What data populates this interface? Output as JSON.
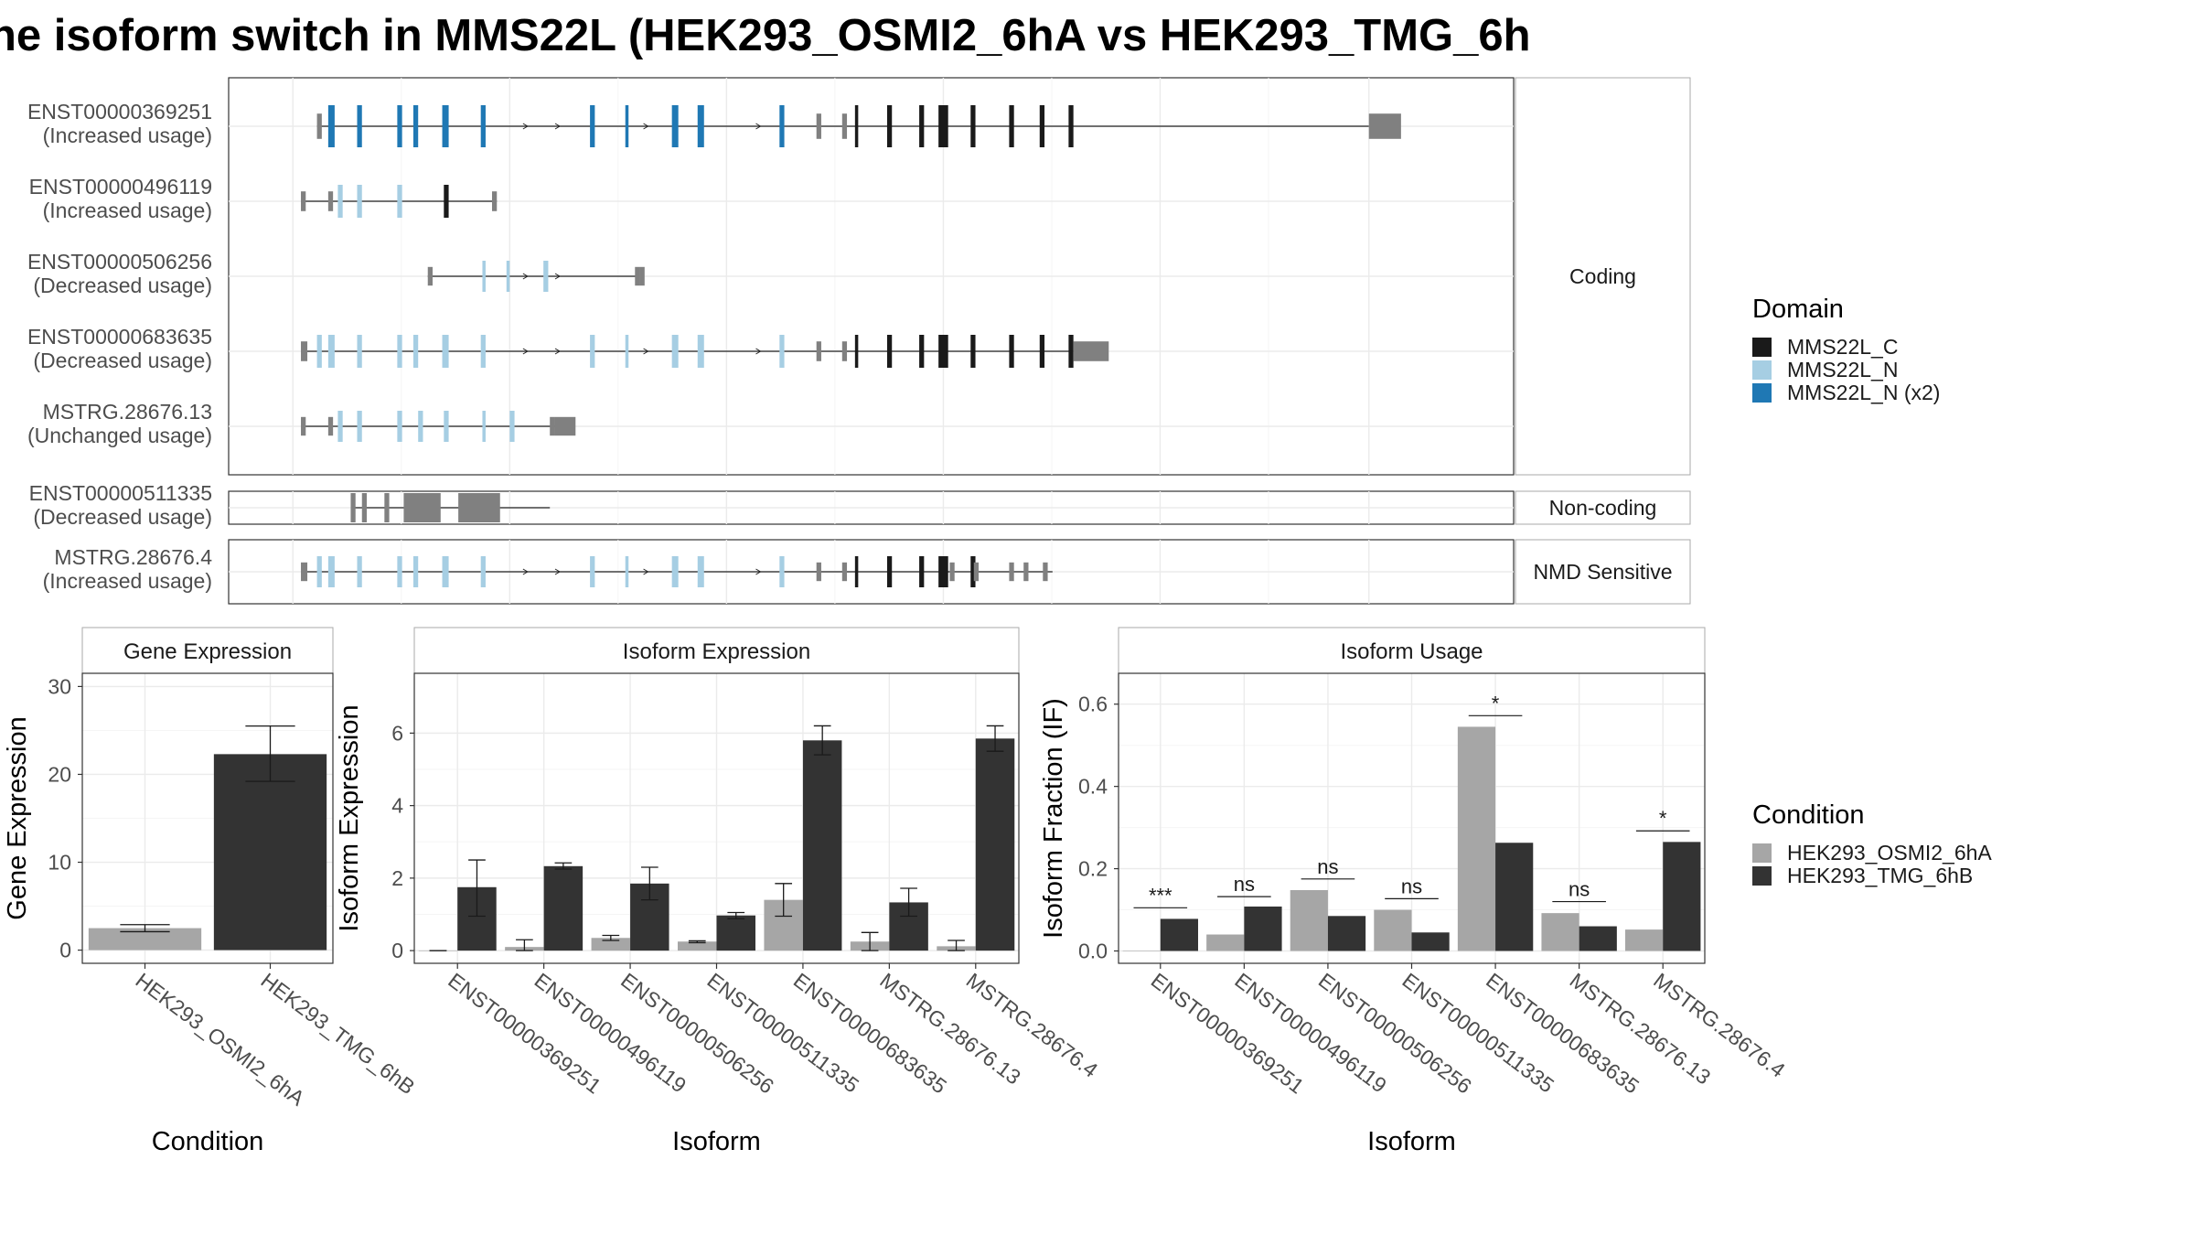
{
  "title": "ne isoform switch in MMS22L (HEK293_OSMI2_6hA vs HEK293_TMG_6h",
  "colors": {
    "domain_c": "#1a1a1a",
    "domain_n": "#a6cee3",
    "domain_n2": "#1f78b4",
    "utr": "#808080",
    "cond_a": "#a6a6a6",
    "cond_b": "#333333"
  },
  "legend_domain": {
    "title": "Domain",
    "items": [
      {
        "label": "MMS22L_C",
        "color": "#1a1a1a"
      },
      {
        "label": "MMS22L_N",
        "color": "#a6cee3"
      },
      {
        "label": "MMS22L_N (x2)",
        "color": "#1f78b4"
      }
    ]
  },
  "legend_condition": {
    "title": "Condition",
    "items": [
      {
        "label": "HEK293_OSMI2_6hA",
        "color": "#a6a6a6"
      },
      {
        "label": "HEK293_TMG_6hB",
        "color": "#333333"
      }
    ]
  },
  "isoform_structures": {
    "panels": [
      {
        "label": "Coding",
        "isoforms": [
          {
            "id": "ENST00000369251",
            "status": "(Increased usage)",
            "n2": true,
            "start": 110.5,
            "end": 171,
            "utr_end": 173
          },
          {
            "id": "ENST00000496119",
            "status": "(Increased usage)",
            "n2": false,
            "start": 104.5,
            "end": 118,
            "utr_end": 120
          },
          {
            "id": "ENST00000506256",
            "status": "(Decreased usage)",
            "n2": false,
            "start": 118,
            "end": 129,
            "utr_end": 130
          },
          {
            "id": "ENST00000683635",
            "status": "(Decreased usage)",
            "n2": false,
            "start": 104.5,
            "end": 171,
            "utr_end": 177
          },
          {
            "id": "MSTRG.28676.13",
            "status": "(Unchanged usage)",
            "n2": false,
            "start": 104.5,
            "end": 126.5,
            "utr_end": 128
          }
        ]
      },
      {
        "label": "Non-coding",
        "isoforms": [
          {
            "id": "ENST00000511335",
            "status": "(Decreased usage)"
          }
        ]
      },
      {
        "label": "NMD Sensitive",
        "isoforms": [
          {
            "id": "MSTRG.28676.4",
            "status": "(Increased usage)",
            "n2": false,
            "start": 104.5,
            "end": 171,
            "utr_end": 171.5
          }
        ]
      }
    ]
  },
  "chart_data": [
    {
      "type": "bar",
      "title": "Gene Expression",
      "xlabel": "Condition",
      "ylabel": "Gene Expression",
      "categories": [
        "HEK293_OSMI2_6hA",
        "HEK293_TMG_6hB"
      ],
      "values": [
        2.5,
        22.3
      ],
      "errors": [
        [
          2.1,
          2.9
        ],
        [
          19.2,
          25.5
        ]
      ],
      "ylim": [
        -1.5,
        31.5
      ],
      "yticks": [
        0,
        10,
        20,
        30
      ]
    },
    {
      "type": "bar",
      "title": "Isoform Expression",
      "xlabel": "Isoform",
      "ylabel": "Isoform Expression",
      "categories": [
        "ENST00000369251",
        "ENST00000496119",
        "ENST00000506256",
        "ENST00000511335",
        "ENST00000683635",
        "MSTRG.28676.13",
        "MSTRG.28676.4"
      ],
      "series": [
        {
          "name": "HEK293_OSMI2_6hA",
          "values": [
            0.0,
            0.1,
            0.35,
            0.25,
            1.4,
            0.25,
            0.12
          ],
          "errors": [
            [
              0.0,
              0.0
            ],
            [
              0.0,
              0.3
            ],
            [
              0.28,
              0.42
            ],
            [
              0.22,
              0.27
            ],
            [
              0.95,
              1.85
            ],
            [
              0.0,
              0.5
            ],
            [
              0.0,
              0.28
            ]
          ]
        },
        {
          "name": "HEK293_TMG_6hB",
          "values": [
            1.75,
            2.33,
            1.85,
            0.97,
            5.8,
            1.33,
            5.85
          ],
          "errors": [
            [
              0.95,
              2.5
            ],
            [
              2.25,
              2.42
            ],
            [
              1.4,
              2.3
            ],
            [
              0.88,
              1.05
            ],
            [
              5.4,
              6.2
            ],
            [
              0.95,
              1.72
            ],
            [
              5.5,
              6.2
            ]
          ]
        }
      ],
      "ylim": [
        -0.35,
        7.65
      ],
      "yticks": [
        0,
        2,
        4,
        6
      ]
    },
    {
      "type": "bar",
      "title": "Isoform Usage",
      "xlabel": "Isoform",
      "ylabel": "Isoform Fraction (IF)",
      "categories": [
        "ENST00000369251",
        "ENST00000496119",
        "ENST00000506256",
        "ENST00000511335",
        "ENST00000683635",
        "MSTRG.28676.13",
        "MSTRG.28676.4"
      ],
      "series": [
        {
          "name": "HEK293_OSMI2_6hA",
          "values": [
            0.0,
            0.04,
            0.148,
            0.1,
            0.545,
            0.092,
            0.052
          ]
        },
        {
          "name": "HEK293_TMG_6hB",
          "values": [
            0.078,
            0.108,
            0.085,
            0.045,
            0.263,
            0.06,
            0.265
          ]
        }
      ],
      "significance": [
        {
          "label": "***",
          "y": 0.105
        },
        {
          "label": "ns",
          "y": 0.132
        },
        {
          "label": "ns",
          "y": 0.175
        },
        {
          "label": "ns",
          "y": 0.127
        },
        {
          "label": "*",
          "y": 0.572
        },
        {
          "label": "ns",
          "y": 0.12
        },
        {
          "label": "*",
          "y": 0.292
        }
      ],
      "ylim": [
        -0.03,
        0.675
      ],
      "yticks": [
        0.0,
        0.2,
        0.4,
        0.6
      ],
      "ytick_labels": [
        "0.0",
        "0.2",
        "0.4",
        "0.6"
      ]
    }
  ]
}
